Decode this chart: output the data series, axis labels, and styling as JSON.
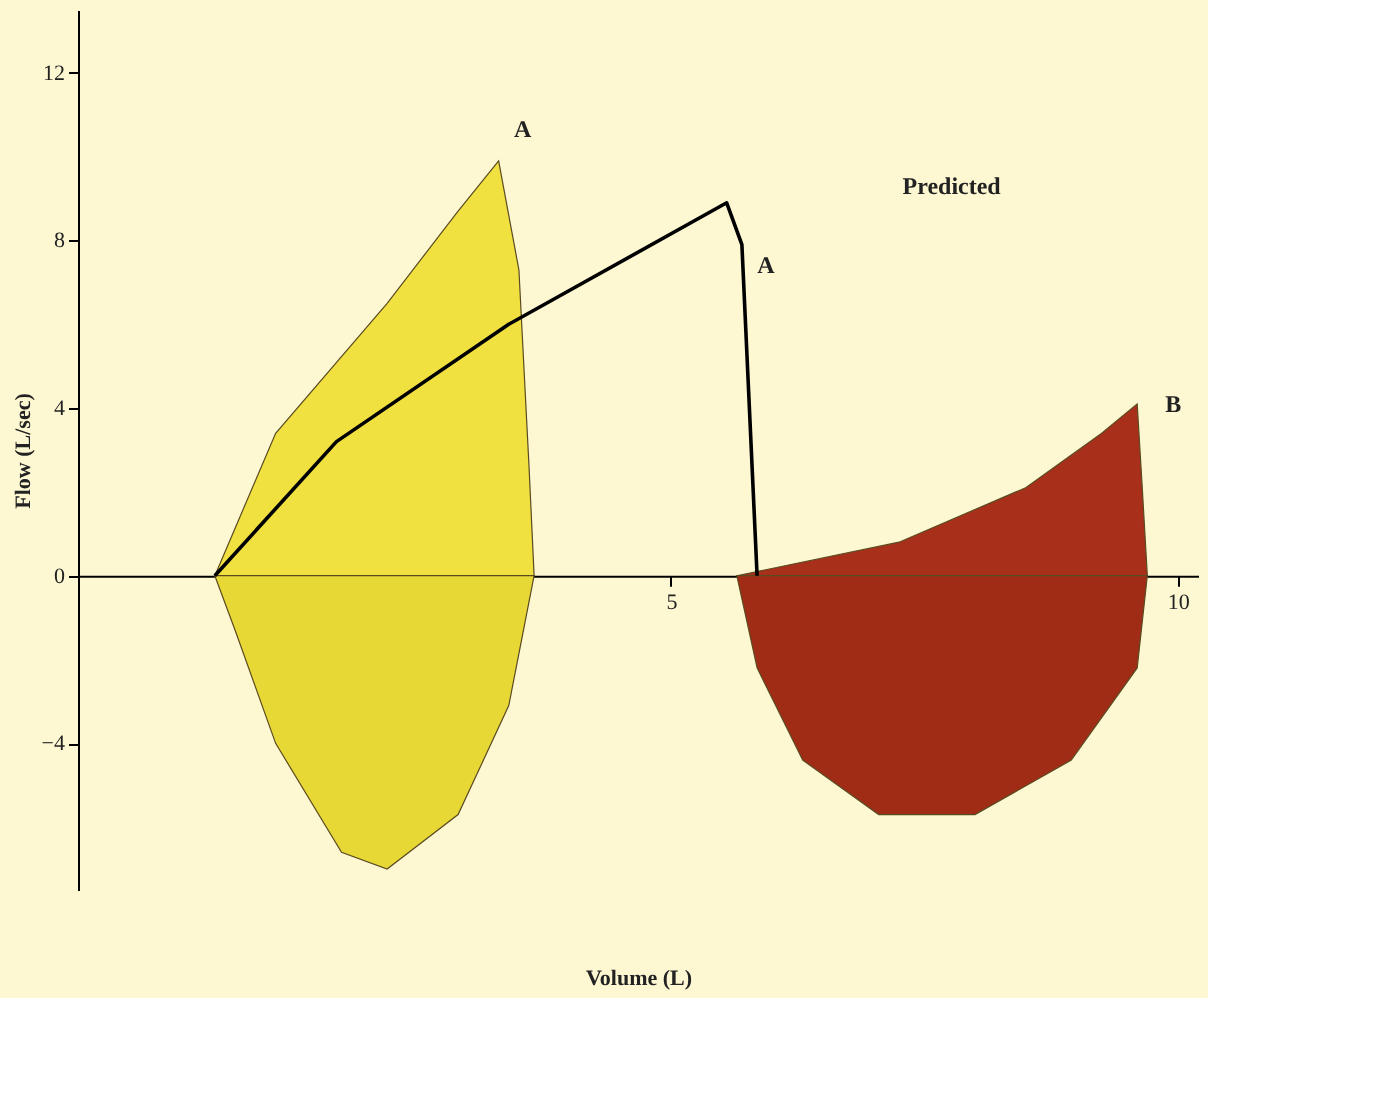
{
  "chart_data": {
    "type": "area",
    "xlabel": "Volume (L)",
    "ylabel": "Flow (L/sec)",
    "xlim": [
      -0.85,
      10.2
    ],
    "ylim": [
      -7.5,
      13.5
    ],
    "xticks": [
      5,
      10
    ],
    "yticks": [
      -4,
      0,
      4,
      8,
      12
    ],
    "grid": false,
    "series": [
      {
        "color": "#f0e040",
        "x": [
          0.5,
          1.1,
          2.2,
          2.9,
          3.3,
          3.5,
          3.6,
          3.65
        ],
        "values": [
          0,
          3.4,
          6.5,
          8.7,
          9.9,
          7.3,
          2.6,
          0
        ]
      },
      {
        "color": "#e8d836",
        "x": [
          0.5,
          0.7,
          1.1,
          1.75,
          2.2,
          2.9,
          3.4,
          3.65
        ],
        "values": [
          0,
          -1.3,
          -4.0,
          -6.6,
          -7.0,
          -5.7,
          -3.1,
          0
        ]
      },
      {
        "color": "#a8301a",
        "x": [
          5.65,
          7.25,
          8.5,
          9.25,
          9.6,
          9.65,
          9.7
        ],
        "values": [
          0,
          0.8,
          2.1,
          3.4,
          4.1,
          2.1,
          0
        ]
      },
      {
        "color": "#a02c16",
        "x": [
          5.65,
          5.85,
          6.3,
          7.05,
          8.0,
          8.95,
          9.6,
          9.7
        ],
        "values": [
          0,
          -2.2,
          -4.4,
          -5.7,
          -5.7,
          -4.4,
          -2.2,
          0
        ]
      },
      {
        "type": "line",
        "color": "#000000",
        "x": [
          0.5,
          1.7,
          3.4,
          5.55,
          5.7,
          5.85
        ],
        "values": [
          0,
          3.2,
          6.0,
          8.9,
          7.9,
          0
        ]
      }
    ],
    "annotations": [
      {
        "text": "A",
        "x": 3.3,
        "y": 9.9
      },
      "Predicted",
      {
        "text": "A",
        "x": 5.7,
        "y": 7.9
      },
      {
        "text": "B",
        "x": 9.6,
        "y": 4.1
      }
    ]
  }
}
